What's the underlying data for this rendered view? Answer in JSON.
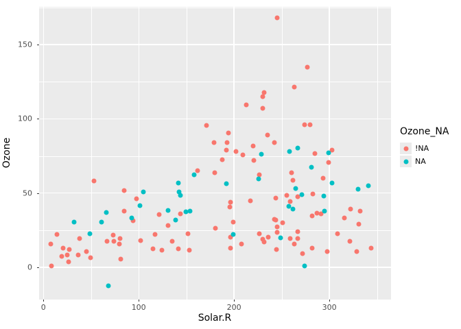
{
  "figure": {
    "background": "#FFFFFF",
    "panel_background": "#EBEBEB",
    "grid_color": "#FFFFFF",
    "tick_color": "#333333",
    "tick_label_color": "#4D4D4D"
  },
  "chart_data": {
    "type": "scatter",
    "title": "",
    "xlabel": "Solar.R",
    "ylabel": "Ozone",
    "xlim": [
      -4.5,
      364.7
    ],
    "ylim": [
      -21.7,
      175.4
    ],
    "x_major_ticks": [
      0,
      100,
      200,
      300
    ],
    "x_minor_gridlines": [
      50,
      150,
      250,
      350
    ],
    "y_major_ticks": [
      0,
      50,
      100,
      150
    ],
    "y_minor_gridlines": [
      25,
      75,
      125,
      175
    ],
    "grid": "major and minor white gridlines on gray panel",
    "legend": {
      "title": "Ozone_NA",
      "position": "right"
    },
    "series": [
      {
        "name": "!NA",
        "color": "#F8766D",
        "points": [
          [
            245,
            168
          ],
          [
            277,
            135
          ],
          [
            263,
            121.5
          ],
          [
            231.5,
            117.5
          ],
          [
            230,
            115
          ],
          [
            213,
            109.5
          ],
          [
            230,
            107
          ],
          [
            171,
            95.5
          ],
          [
            194,
            90.5
          ],
          [
            179,
            84
          ],
          [
            193,
            84
          ],
          [
            235,
            89
          ],
          [
            220,
            81.5
          ],
          [
            192,
            79
          ],
          [
            202,
            78
          ],
          [
            209,
            75.5
          ],
          [
            221,
            72
          ],
          [
            188,
            72.5
          ],
          [
            162,
            65
          ],
          [
            180,
            63.5
          ],
          [
            226.5,
            62.5
          ],
          [
            53,
            58
          ],
          [
            85,
            51.5
          ],
          [
            98,
            46
          ],
          [
            274,
            96
          ],
          [
            280,
            96
          ],
          [
            242,
            84
          ],
          [
            284.5,
            76.5
          ],
          [
            302.5,
            79
          ],
          [
            299.5,
            70.5
          ],
          [
            260.5,
            63.5
          ],
          [
            261.5,
            58.5
          ],
          [
            293.5,
            60
          ],
          [
            255,
            48.5
          ],
          [
            267,
            47.5
          ],
          [
            282.5,
            49.5
          ],
          [
            244,
            46.5
          ],
          [
            259,
            44.5
          ],
          [
            217,
            45
          ],
          [
            196,
            44
          ],
          [
            195.5,
            40.5
          ],
          [
            121.5,
            35.5
          ],
          [
            144,
            36
          ],
          [
            131,
            28
          ],
          [
            199,
            30.5
          ],
          [
            180.5,
            26.5
          ],
          [
            117,
            22
          ],
          [
            152,
            22.5
          ],
          [
            196,
            20.5
          ],
          [
            135,
            17.5
          ],
          [
            207.5,
            15.5
          ],
          [
            196,
            13
          ],
          [
            124,
            11.5
          ],
          [
            141.5,
            12.5
          ],
          [
            153,
            11.5
          ],
          [
            226.5,
            22.5
          ],
          [
            230,
            19
          ],
          [
            231.5,
            17
          ],
          [
            236,
            20.5
          ],
          [
            242,
            32.5
          ],
          [
            291,
            36
          ],
          [
            287,
            36.5
          ],
          [
            282,
            34.5
          ],
          [
            322,
            39
          ],
          [
            332,
            38
          ],
          [
            315.5,
            33
          ],
          [
            331,
            29
          ],
          [
            244,
            32
          ],
          [
            251,
            30
          ],
          [
            245.5,
            27
          ],
          [
            245.5,
            23.5
          ],
          [
            266.5,
            24
          ],
          [
            267,
            19.5
          ],
          [
            259,
            19.5
          ],
          [
            263.5,
            15.5
          ],
          [
            244.5,
            12
          ],
          [
            282,
            13
          ],
          [
            272,
            9
          ],
          [
            298,
            10.5
          ],
          [
            308.5,
            22.5
          ],
          [
            321.5,
            17.5
          ],
          [
            329,
            10.5
          ],
          [
            343.5,
            13
          ],
          [
            85,
            38
          ],
          [
            94,
            31.5
          ],
          [
            14,
            22
          ],
          [
            38,
            19.5
          ],
          [
            7.5,
            15.5
          ],
          [
            21,
            13
          ],
          [
            27.5,
            12
          ],
          [
            19.5,
            7.5
          ],
          [
            25,
            8.5
          ],
          [
            36.5,
            8.5
          ],
          [
            45.5,
            10.5
          ],
          [
            49.5,
            6.5
          ],
          [
            26.5,
            3.5
          ],
          [
            8.5,
            1
          ],
          [
            74,
            17.5
          ],
          [
            67,
            17.5
          ],
          [
            73.5,
            21.5
          ],
          [
            80.5,
            19.5
          ],
          [
            79.5,
            15.5
          ],
          [
            81.5,
            5.5
          ],
          [
            102,
            18
          ],
          [
            115,
            12.5
          ]
        ]
      },
      {
        "name": "NA",
        "color": "#00BFC4",
        "points": [
          [
            105,
            51
          ],
          [
            228.5,
            76
          ],
          [
            158,
            62.5
          ],
          [
            226,
            59.5
          ],
          [
            141.5,
            57
          ],
          [
            192,
            56.5
          ],
          [
            142,
            51
          ],
          [
            144,
            48.5
          ],
          [
            258,
            78
          ],
          [
            266.5,
            80.5
          ],
          [
            299.5,
            77
          ],
          [
            281,
            67.5
          ],
          [
            303,
            57
          ],
          [
            265,
            53
          ],
          [
            271,
            49
          ],
          [
            294,
            48
          ],
          [
            330,
            52.5
          ],
          [
            341,
            55
          ],
          [
            101,
            41.5
          ],
          [
            66,
            37
          ],
          [
            32,
            30.5
          ],
          [
            61,
            30.5
          ],
          [
            93,
            33
          ],
          [
            48.5,
            22.5
          ],
          [
            68,
            -12.5
          ],
          [
            130.5,
            38.5
          ],
          [
            149.5,
            37.5
          ],
          [
            154,
            38
          ],
          [
            139,
            32
          ],
          [
            199.5,
            22
          ],
          [
            257.5,
            41
          ],
          [
            262,
            39
          ],
          [
            295,
            38
          ],
          [
            249,
            20
          ],
          [
            274,
            1
          ]
        ]
      }
    ]
  }
}
